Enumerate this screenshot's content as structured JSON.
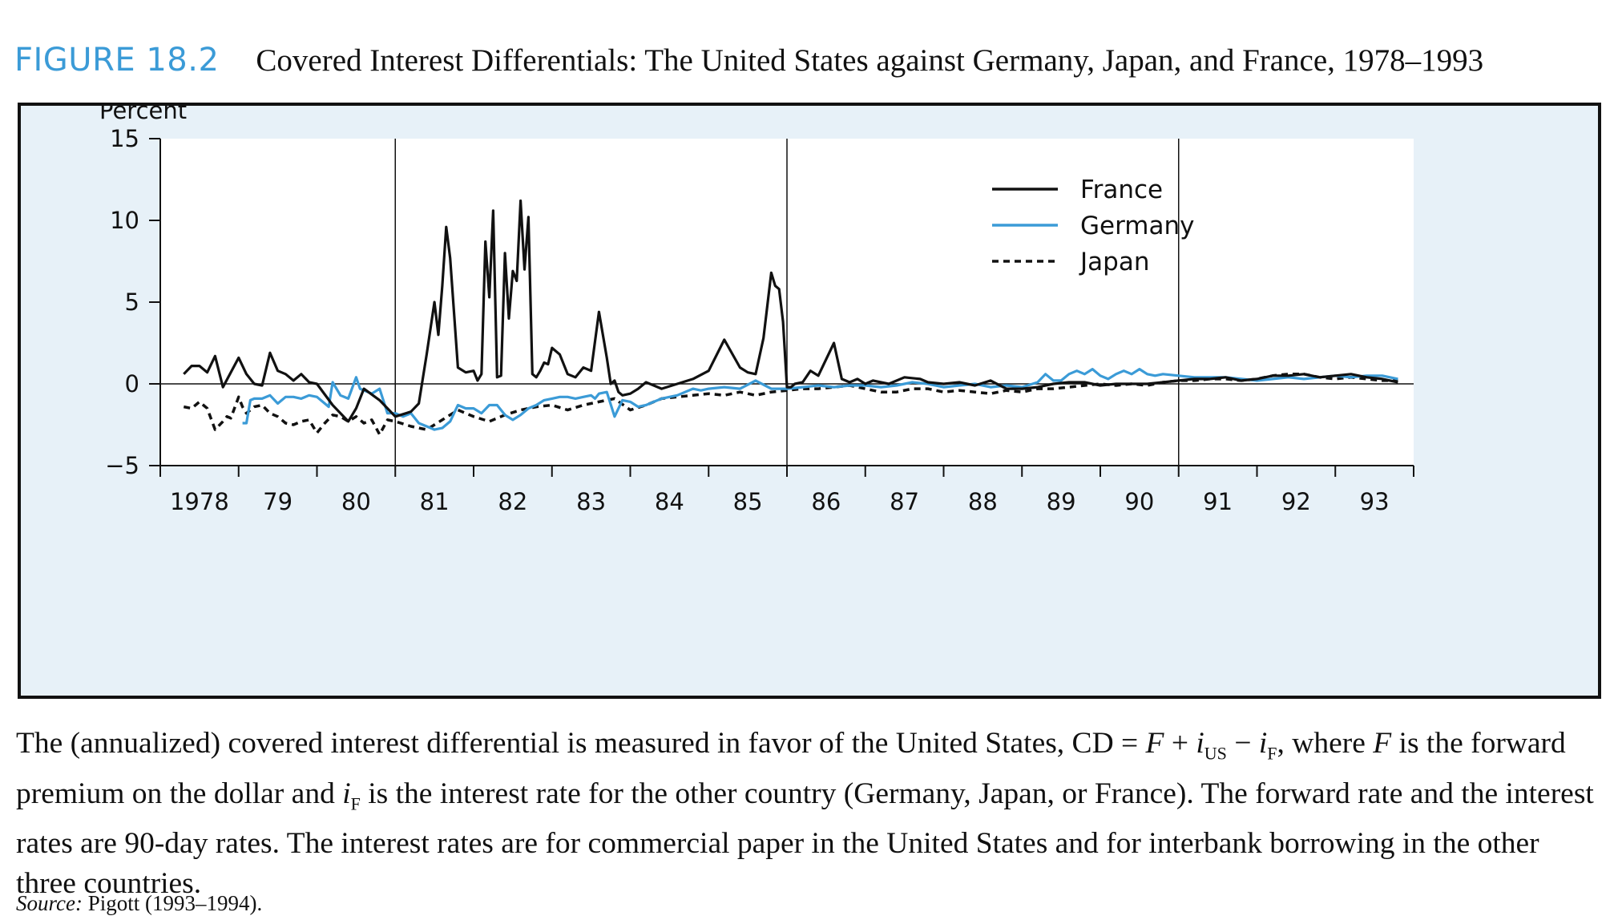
{
  "figure": {
    "number": "FIGURE 18.2",
    "title": "Covered Interest Differentials: The United States against Germany, Japan, and France, 1978–1993"
  },
  "caption": {
    "part1": "The (annualized) covered interest differential is measured in favor of the United States, CD = ",
    "F": "F",
    "plus": " + ",
    "i1": "i",
    "sub_us": "US",
    "minus": " − ",
    "i2": "i",
    "sub_f1": "F",
    "part2": ", where ",
    "F2": "F",
    "part3": " is the forward premium on the dollar and ",
    "i3": "i",
    "sub_f2": "F",
    "part4": " is the interest rate for the other country (Germany, Japan, or France). The forward rate and the interest rates are 90-day rates. The interest rates are for commercial paper in the United States and for interbank borrowing in the other three countries."
  },
  "source": {
    "label": "Source:",
    "text": " Pigott (1993–1994)."
  },
  "colors": {
    "france": "#111111",
    "germany": "#3b9bd7",
    "japan": "#111111",
    "panel_bg": "#e7f1f8",
    "plot_bg": "#ffffff"
  },
  "chart_data": {
    "type": "line",
    "title": "",
    "xlabel": "",
    "ylabel": "Percent",
    "ylim": [
      -5,
      15
    ],
    "xlim": [
      1978.0,
      1994.0
    ],
    "yticks": [
      -5,
      0,
      5,
      10,
      15
    ],
    "xtick_labels": [
      "1978",
      "79",
      "80",
      "81",
      "82",
      "83",
      "84",
      "85",
      "86",
      "87",
      "88",
      "89",
      "90",
      "91",
      "92",
      "93"
    ],
    "reference_lines_x": [
      1981.0,
      1986.0,
      1991.0
    ],
    "legend": {
      "placement": "top-right",
      "entries": [
        "France",
        "Germany",
        "Japan"
      ]
    },
    "grid": false,
    "series": [
      {
        "name": "France",
        "style": "solid",
        "x": [
          1978.3,
          1978.4,
          1978.5,
          1978.6,
          1978.7,
          1978.8,
          1978.9,
          1979.0,
          1979.1,
          1979.2,
          1979.3,
          1979.4,
          1979.5,
          1979.6,
          1979.7,
          1979.8,
          1979.9,
          1980.0,
          1980.2,
          1980.4,
          1980.5,
          1980.6,
          1980.8,
          1981.0,
          1981.2,
          1981.3,
          1981.4,
          1981.5,
          1981.55,
          1981.6,
          1981.65,
          1981.7,
          1981.8,
          1981.9,
          1982.0,
          1982.05,
          1982.1,
          1982.15,
          1982.2,
          1982.25,
          1982.3,
          1982.35,
          1982.4,
          1982.45,
          1982.5,
          1982.55,
          1982.6,
          1982.65,
          1982.7,
          1982.75,
          1982.8,
          1982.85,
          1982.9,
          1982.95,
          1983.0,
          1983.1,
          1983.2,
          1983.3,
          1983.4,
          1983.5,
          1983.6,
          1983.7,
          1983.75,
          1983.8,
          1983.85,
          1983.9,
          1984.0,
          1984.1,
          1984.2,
          1984.3,
          1984.4,
          1984.6,
          1984.8,
          1985.0,
          1985.2,
          1985.4,
          1985.5,
          1985.6,
          1985.7,
          1985.8,
          1985.85,
          1985.9,
          1985.95,
          1986.0,
          1986.05,
          1986.1,
          1986.2,
          1986.3,
          1986.4,
          1986.6,
          1986.7,
          1986.8,
          1986.9,
          1987.0,
          1987.1,
          1987.2,
          1987.3,
          1987.5,
          1987.7,
          1987.8,
          1988.0,
          1988.2,
          1988.4,
          1988.6,
          1988.8,
          1989.0,
          1989.2,
          1989.4,
          1989.6,
          1989.8,
          1990.0,
          1990.2,
          1990.4,
          1990.6,
          1990.8,
          1991.0,
          1991.2,
          1991.4,
          1991.6,
          1991.8,
          1992.0,
          1992.2,
          1992.4,
          1992.6,
          1992.8,
          1993.0,
          1993.2,
          1993.4,
          1993.6,
          1993.8
        ],
        "y": [
          0.6,
          1.1,
          1.1,
          0.7,
          1.7,
          -0.2,
          0.7,
          1.6,
          0.6,
          0.0,
          -0.1,
          1.9,
          0.8,
          0.6,
          0.2,
          0.6,
          0.1,
          0.0,
          -1.3,
          -2.3,
          -1.5,
          -0.3,
          -1.0,
          -2.0,
          -1.7,
          -1.2,
          1.8,
          5.0,
          3.0,
          6.0,
          9.6,
          7.7,
          1.0,
          0.7,
          0.8,
          0.2,
          0.6,
          8.7,
          5.3,
          10.6,
          0.4,
          0.5,
          8.0,
          4.0,
          6.9,
          6.3,
          11.2,
          7.0,
          10.2,
          0.6,
          0.4,
          0.8,
          1.3,
          1.2,
          2.2,
          1.8,
          0.6,
          0.4,
          1.0,
          0.8,
          4.4,
          1.6,
          0.0,
          0.2,
          -0.5,
          -0.7,
          -0.6,
          -0.3,
          0.1,
          -0.1,
          -0.3,
          0.0,
          0.3,
          0.8,
          2.7,
          1.0,
          0.7,
          0.6,
          2.8,
          6.8,
          6.0,
          5.8,
          3.8,
          -0.2,
          -0.2,
          0.0,
          0.1,
          0.8,
          0.5,
          2.5,
          0.3,
          0.1,
          0.3,
          0.0,
          0.2,
          0.1,
          0.0,
          0.4,
          0.3,
          0.1,
          0.0,
          0.1,
          -0.1,
          0.2,
          -0.3,
          -0.3,
          -0.2,
          0.0,
          0.1,
          0.1,
          -0.1,
          0.0,
          0.0,
          0.0,
          0.1,
          0.2,
          0.3,
          0.3,
          0.4,
          0.2,
          0.3,
          0.5,
          0.5,
          0.6,
          0.4,
          0.5,
          0.6,
          0.4,
          0.3,
          0.1
        ],
        "color": "#111111"
      },
      {
        "name": "Germany",
        "style": "solid",
        "x": [
          1979.05,
          1979.1,
          1979.15,
          1979.2,
          1979.3,
          1979.4,
          1979.5,
          1979.6,
          1979.7,
          1979.8,
          1979.9,
          1980.0,
          1980.1,
          1980.15,
          1980.2,
          1980.3,
          1980.4,
          1980.5,
          1980.55,
          1980.6,
          1980.7,
          1980.8,
          1980.9,
          1981.0,
          1981.1,
          1981.2,
          1981.3,
          1981.4,
          1981.5,
          1981.6,
          1981.7,
          1981.8,
          1981.9,
          1982.0,
          1982.1,
          1982.2,
          1982.3,
          1982.4,
          1982.5,
          1982.6,
          1982.7,
          1982.8,
          1982.9,
          1983.0,
          1983.1,
          1983.2,
          1983.3,
          1983.4,
          1983.5,
          1983.55,
          1983.6,
          1983.7,
          1983.8,
          1983.9,
          1984.0,
          1984.1,
          1984.2,
          1984.3,
          1984.4,
          1984.5,
          1984.6,
          1984.7,
          1984.8,
          1984.9,
          1985.0,
          1985.2,
          1985.4,
          1985.6,
          1985.8,
          1986.0,
          1986.2,
          1986.4,
          1986.6,
          1986.8,
          1987.0,
          1987.2,
          1987.4,
          1987.6,
          1987.8,
          1988.0,
          1988.2,
          1988.4,
          1988.6,
          1988.8,
          1989.0,
          1989.2,
          1989.3,
          1989.4,
          1989.5,
          1989.6,
          1989.7,
          1989.8,
          1989.9,
          1990.0,
          1990.1,
          1990.2,
          1990.3,
          1990.4,
          1990.5,
          1990.6,
          1990.7,
          1990.8,
          1991.0,
          1991.2,
          1991.4,
          1991.6,
          1991.8,
          1992.0,
          1992.2,
          1992.4,
          1992.6,
          1992.8,
          1993.0,
          1993.2,
          1993.4,
          1993.6,
          1993.8
        ],
        "y": [
          -2.4,
          -2.4,
          -1.0,
          -0.9,
          -0.9,
          -0.7,
          -1.2,
          -0.8,
          -0.8,
          -0.9,
          -0.7,
          -0.8,
          -1.2,
          -1.4,
          0.1,
          -0.7,
          -0.9,
          0.4,
          -0.3,
          -0.4,
          -0.6,
          -0.3,
          -1.8,
          -1.8,
          -2.0,
          -1.8,
          -2.4,
          -2.6,
          -2.8,
          -2.7,
          -2.3,
          -1.3,
          -1.5,
          -1.5,
          -1.8,
          -1.3,
          -1.3,
          -1.9,
          -2.2,
          -1.9,
          -1.5,
          -1.3,
          -1.0,
          -0.9,
          -0.8,
          -0.8,
          -0.9,
          -0.8,
          -0.7,
          -0.9,
          -0.6,
          -0.5,
          -2.0,
          -1.0,
          -1.1,
          -1.4,
          -1.3,
          -1.1,
          -0.9,
          -0.8,
          -0.7,
          -0.5,
          -0.3,
          -0.4,
          -0.3,
          -0.2,
          -0.3,
          0.2,
          -0.3,
          -0.3,
          -0.2,
          -0.1,
          -0.2,
          -0.1,
          -0.1,
          -0.2,
          -0.1,
          0.1,
          0.0,
          -0.2,
          -0.1,
          0.0,
          -0.2,
          -0.1,
          -0.2,
          0.1,
          0.6,
          0.2,
          0.2,
          0.6,
          0.8,
          0.6,
          0.9,
          0.5,
          0.3,
          0.6,
          0.8,
          0.6,
          0.9,
          0.6,
          0.5,
          0.6,
          0.5,
          0.4,
          0.4,
          0.4,
          0.3,
          0.2,
          0.3,
          0.4,
          0.3,
          0.4,
          0.5,
          0.4,
          0.5,
          0.5,
          0.3
        ],
        "color": "#3b9bd7"
      },
      {
        "name": "Japan",
        "style": "dashed",
        "x": [
          1978.3,
          1978.4,
          1978.5,
          1978.6,
          1978.7,
          1978.8,
          1978.85,
          1978.9,
          1979.0,
          1979.05,
          1979.1,
          1979.2,
          1979.3,
          1979.4,
          1979.5,
          1979.6,
          1979.7,
          1979.8,
          1979.9,
          1980.0,
          1980.1,
          1980.2,
          1980.3,
          1980.4,
          1980.5,
          1980.6,
          1980.7,
          1980.8,
          1980.9,
          1981.0,
          1981.2,
          1981.4,
          1981.6,
          1981.8,
          1982.0,
          1982.2,
          1982.4,
          1982.6,
          1982.8,
          1983.0,
          1983.2,
          1983.4,
          1983.6,
          1983.8,
          1984.0,
          1984.2,
          1984.4,
          1984.6,
          1984.8,
          1985.0,
          1985.2,
          1985.4,
          1985.6,
          1985.8,
          1986.0,
          1986.2,
          1986.4,
          1986.6,
          1986.8,
          1987.0,
          1987.2,
          1987.4,
          1987.6,
          1987.8,
          1988.0,
          1988.2,
          1988.4,
          1988.6,
          1988.8,
          1989.0,
          1989.2,
          1989.4,
          1989.6,
          1989.8,
          1990.0,
          1990.2,
          1990.4,
          1990.6,
          1990.8,
          1991.0,
          1991.2,
          1991.4,
          1991.6,
          1991.8,
          1992.0,
          1992.2,
          1992.4,
          1992.6,
          1992.8,
          1993.0,
          1993.2,
          1993.4,
          1993.6,
          1993.8
        ],
        "y": [
          -1.4,
          -1.5,
          -1.1,
          -1.5,
          -2.8,
          -2.3,
          -2.0,
          -2.1,
          -0.8,
          -1.4,
          -1.8,
          -1.4,
          -1.3,
          -1.8,
          -2.0,
          -2.4,
          -2.5,
          -2.3,
          -2.2,
          -3.0,
          -2.4,
          -1.9,
          -2.0,
          -2.3,
          -2.0,
          -2.4,
          -2.2,
          -3.1,
          -2.2,
          -2.3,
          -2.6,
          -2.8,
          -2.2,
          -1.6,
          -2.0,
          -2.3,
          -1.9,
          -1.6,
          -1.4,
          -1.3,
          -1.6,
          -1.3,
          -1.1,
          -0.9,
          -1.6,
          -1.3,
          -0.9,
          -0.8,
          -0.7,
          -0.6,
          -0.7,
          -0.5,
          -0.7,
          -0.5,
          -0.4,
          -0.3,
          -0.3,
          -0.2,
          -0.1,
          -0.3,
          -0.5,
          -0.5,
          -0.3,
          -0.3,
          -0.5,
          -0.4,
          -0.5,
          -0.6,
          -0.4,
          -0.5,
          -0.3,
          -0.3,
          -0.2,
          -0.1,
          0.0,
          -0.1,
          0.0,
          -0.1,
          0.1,
          0.2,
          0.2,
          0.3,
          0.3,
          0.2,
          0.3,
          0.5,
          0.6,
          0.6,
          0.4,
          0.3,
          0.4,
          0.3,
          0.2,
          0.2
        ],
        "color": "#111111"
      }
    ]
  }
}
